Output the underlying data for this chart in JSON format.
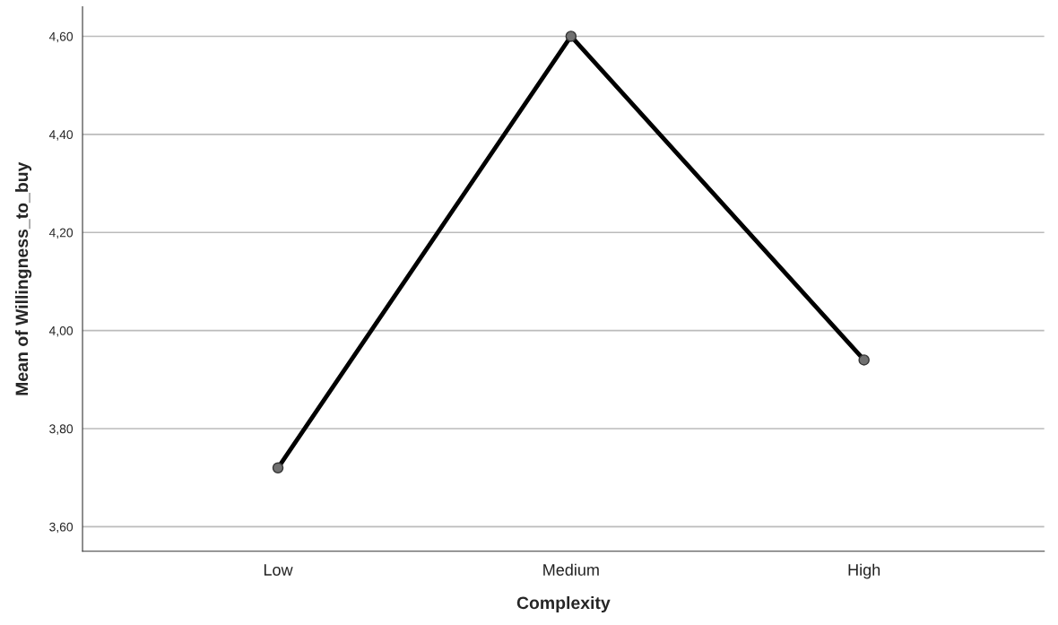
{
  "chart_data": {
    "type": "line",
    "xlabel": "Complexity",
    "ylabel": "Mean of Willingness_to_buy",
    "categories": [
      "Low",
      "Medium",
      "High"
    ],
    "series": [
      {
        "color": "#000000",
        "values": [
          3.72,
          4.6,
          3.94
        ]
      }
    ],
    "ylim": [
      3.55,
      4.66
    ],
    "yticks": [
      {
        "value": 3.6,
        "label": "3,60"
      },
      {
        "value": 3.8,
        "label": "3,80"
      },
      {
        "value": 4.0,
        "label": "4,00"
      },
      {
        "value": 4.2,
        "label": "4,20"
      },
      {
        "value": 4.4,
        "label": "4,40"
      },
      {
        "value": 4.6,
        "label": "4,60"
      }
    ],
    "grid": "y",
    "marker": "circle",
    "line_style": "solid"
  }
}
